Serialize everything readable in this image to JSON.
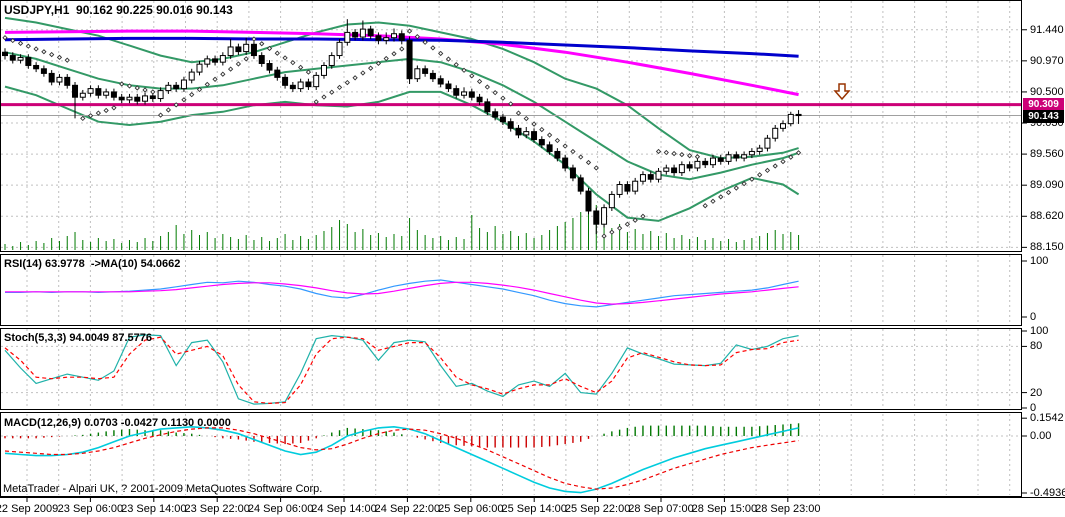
{
  "header": {
    "title": "USDJPY,H1  90.162 90.225 90.016 90.143"
  },
  "copyright": "MetaTrader - Alpari UK, ? 2001-2009 MetaQuotes Software Corp.",
  "panels": {
    "rsi_label": "RSI(14) 63.9778  ->MA(10) 54.0662",
    "stoch_label": "Stoch(5,3,3) 94.0049 87.5776",
    "macd_label": "MACD(12,26,9) 0.0703 -0.0427 0.1130 0.0000"
  },
  "price_axis": {
    "labels": [
      {
        "t": "91.440",
        "v": 91.44
      },
      {
        "t": "90.970",
        "v": 90.97
      },
      {
        "t": "90.500",
        "v": 90.5
      },
      {
        "t": "90.030",
        "v": 90.03
      },
      {
        "t": "89.560",
        "v": 89.56
      },
      {
        "t": "89.090",
        "v": 89.09
      },
      {
        "t": "88.620",
        "v": 88.62
      },
      {
        "t": "88.150",
        "v": 88.15
      }
    ],
    "level_tag": "90.309",
    "price_tag": "90.143"
  },
  "rsi_axis": [
    {
      "t": "100",
      "v": 100
    },
    {
      "t": "0",
      "v": 0
    }
  ],
  "stoch_axis": [
    {
      "t": "100",
      "v": 100
    },
    {
      "t": "80",
      "v": 80
    },
    {
      "t": "20",
      "v": 20
    },
    {
      "t": "0",
      "v": 0
    }
  ],
  "macd_axis": [
    {
      "t": "0.1542",
      "v": 0.1542
    },
    {
      "t": "0.00",
      "v": 0
    },
    {
      "t": "-0.4936",
      "v": -0.4936
    }
  ],
  "time_axis": {
    "labels": [
      "22 Sep 2009",
      "23 Sep 06:00",
      "23 Sep 14:00",
      "23 Sep 22:00",
      "24 Sep 06:00",
      "24 Sep 14:00",
      "24 Sep 22:00",
      "25 Sep 06:00",
      "25 Sep 14:00",
      "25 Sep 22:00",
      "28 Sep 07:00",
      "28 Sep 15:00",
      "28 Sep 23:00"
    ]
  },
  "colors": {
    "grid": "#c0c0c0",
    "border": "#000000",
    "bull": "#ffffff",
    "bear": "#000000",
    "candle_line": "#000000",
    "bollinger": "#339966",
    "ma_blue": "#0000cc",
    "ma_magenta": "#ff00ff",
    "level_line": "#cc0077",
    "price_line": "#a0a0a0",
    "volume": "#007a00",
    "sar": "#333333",
    "rsi": "#3399ff",
    "rsi_ma": "#ff00ff",
    "stoch_k": "#20b2aa",
    "stoch_d": "#ff0000",
    "macd_line": "#00ccdd",
    "macd_signal": "#ee0000",
    "hist_pos": "#007700",
    "hist_neg": "#cc0000",
    "arrow": "#993300",
    "tag_level_bg": "#cc0077",
    "tag_price_bg": "#000000"
  },
  "chart_data": {
    "type": "candlestick",
    "symbol": "USDJPY",
    "timeframe": "H1",
    "current_bar": {
      "open": 90.162,
      "high": 90.225,
      "low": 90.016,
      "close": 90.143
    },
    "price_ylim": [
      88.11,
      91.89
    ],
    "level_line_value": 90.309,
    "current_price": 90.143,
    "arrow": {
      "x": 842,
      "y": 84,
      "dir": "down"
    },
    "candles": [
      [
        91.1,
        91.16,
        90.99,
        91.05
      ],
      [
        91.05,
        91.1,
        90.93,
        90.98
      ],
      [
        90.98,
        91.07,
        90.93,
        91.02
      ],
      [
        91.02,
        91.07,
        90.85,
        90.9
      ],
      [
        90.9,
        90.95,
        90.8,
        90.85
      ],
      [
        90.85,
        90.9,
        90.73,
        90.78
      ],
      [
        90.78,
        90.83,
        90.6,
        90.65
      ],
      [
        90.65,
        90.77,
        90.6,
        90.72
      ],
      [
        90.72,
        90.77,
        90.55,
        90.6
      ],
      [
        90.6,
        90.65,
        90.1,
        90.42
      ],
      [
        90.42,
        90.53,
        90.37,
        90.48
      ],
      [
        90.48,
        90.6,
        90.43,
        90.55
      ],
      [
        90.55,
        90.6,
        90.4,
        90.45
      ],
      [
        90.45,
        90.55,
        90.4,
        90.5
      ],
      [
        90.5,
        90.55,
        90.37,
        90.42
      ],
      [
        90.42,
        90.47,
        90.33,
        90.38
      ],
      [
        90.38,
        90.47,
        90.33,
        90.42
      ],
      [
        90.42,
        90.47,
        90.31,
        90.36
      ],
      [
        90.36,
        90.49,
        90.31,
        90.44
      ],
      [
        90.44,
        90.49,
        90.35,
        90.4
      ],
      [
        90.4,
        90.57,
        90.35,
        90.52
      ],
      [
        90.52,
        90.65,
        90.47,
        90.6
      ],
      [
        90.6,
        90.65,
        90.5,
        90.55
      ],
      [
        90.55,
        90.73,
        90.5,
        90.68
      ],
      [
        90.68,
        90.85,
        90.63,
        90.8
      ],
      [
        90.8,
        90.97,
        90.75,
        90.92
      ],
      [
        90.92,
        91.05,
        90.87,
        91.0
      ],
      [
        91.0,
        91.05,
        90.9,
        90.95
      ],
      [
        90.95,
        91.1,
        90.9,
        91.05
      ],
      [
        91.05,
        91.3,
        91.0,
        91.18
      ],
      [
        91.18,
        91.23,
        91.06,
        91.11
      ],
      [
        91.11,
        91.32,
        91.06,
        91.22
      ],
      [
        91.22,
        91.27,
        91.0,
        91.05
      ],
      [
        91.05,
        91.1,
        90.88,
        90.93
      ],
      [
        90.93,
        90.98,
        90.78,
        90.83
      ],
      [
        90.83,
        90.88,
        90.67,
        90.72
      ],
      [
        90.72,
        90.77,
        90.55,
        90.6
      ],
      [
        90.6,
        90.65,
        90.5,
        90.55
      ],
      [
        90.55,
        90.7,
        90.5,
        90.65
      ],
      [
        90.65,
        90.7,
        90.53,
        90.58
      ],
      [
        90.58,
        90.8,
        90.53,
        90.75
      ],
      [
        90.75,
        90.95,
        90.7,
        90.9
      ],
      [
        90.9,
        91.1,
        90.85,
        91.05
      ],
      [
        91.05,
        91.3,
        91.0,
        91.25
      ],
      [
        91.25,
        91.6,
        91.2,
        91.4
      ],
      [
        91.4,
        91.45,
        91.28,
        91.33
      ],
      [
        91.33,
        91.58,
        91.28,
        91.45
      ],
      [
        91.45,
        91.5,
        91.3,
        91.35
      ],
      [
        91.35,
        91.4,
        91.22,
        91.28
      ],
      [
        91.28,
        91.4,
        91.22,
        91.32
      ],
      [
        91.32,
        91.46,
        91.26,
        91.38
      ],
      [
        91.38,
        91.43,
        91.22,
        91.28
      ],
      [
        91.28,
        91.34,
        90.62,
        90.7
      ],
      [
        90.7,
        90.9,
        90.65,
        90.85
      ],
      [
        90.85,
        90.9,
        90.73,
        90.78
      ],
      [
        90.78,
        90.83,
        90.65,
        90.7
      ],
      [
        90.7,
        90.75,
        90.57,
        90.62
      ],
      [
        90.62,
        90.67,
        90.5,
        90.55
      ],
      [
        90.55,
        90.6,
        90.4,
        90.45
      ],
      [
        90.45,
        90.57,
        90.4,
        90.5
      ],
      [
        90.5,
        90.55,
        90.37,
        90.42
      ],
      [
        90.42,
        90.47,
        90.3,
        90.35
      ],
      [
        90.35,
        90.4,
        90.15,
        90.2
      ],
      [
        90.2,
        90.25,
        90.07,
        90.12
      ],
      [
        90.12,
        90.17,
        90.0,
        90.05
      ],
      [
        90.05,
        90.1,
        89.9,
        89.95
      ],
      [
        89.95,
        90.0,
        89.8,
        89.85
      ],
      [
        89.85,
        89.97,
        89.8,
        89.9
      ],
      [
        89.9,
        89.95,
        89.73,
        89.78
      ],
      [
        89.78,
        89.83,
        89.65,
        89.7
      ],
      [
        89.7,
        89.75,
        89.55,
        89.6
      ],
      [
        89.6,
        89.65,
        89.45,
        89.5
      ],
      [
        89.5,
        89.55,
        89.3,
        89.35
      ],
      [
        89.35,
        89.4,
        89.15,
        89.2
      ],
      [
        89.2,
        89.25,
        88.95,
        89.0
      ],
      [
        89.0,
        89.05,
        88.65,
        88.7
      ],
      [
        88.7,
        88.75,
        88.35,
        88.5
      ],
      [
        88.5,
        88.8,
        88.45,
        88.75
      ],
      [
        88.75,
        89.0,
        88.7,
        88.95
      ],
      [
        88.95,
        89.15,
        88.9,
        89.1
      ],
      [
        89.1,
        89.15,
        88.95,
        89.0
      ],
      [
        89.0,
        89.2,
        88.95,
        89.15
      ],
      [
        89.15,
        89.3,
        89.1,
        89.25
      ],
      [
        89.25,
        89.3,
        89.13,
        89.18
      ],
      [
        89.18,
        89.35,
        89.13,
        89.3
      ],
      [
        89.3,
        89.4,
        89.25,
        89.35
      ],
      [
        89.35,
        89.4,
        89.23,
        89.28
      ],
      [
        89.28,
        89.45,
        89.23,
        89.4
      ],
      [
        89.4,
        89.45,
        89.3,
        89.35
      ],
      [
        89.35,
        89.5,
        89.3,
        89.45
      ],
      [
        89.45,
        89.5,
        89.35,
        89.4
      ],
      [
        89.4,
        89.55,
        89.35,
        89.5
      ],
      [
        89.5,
        89.55,
        89.4,
        89.45
      ],
      [
        89.45,
        89.6,
        89.4,
        89.55
      ],
      [
        89.55,
        89.6,
        89.45,
        89.5
      ],
      [
        89.5,
        89.6,
        89.45,
        89.55
      ],
      [
        89.55,
        89.65,
        89.5,
        89.6
      ],
      [
        89.6,
        89.7,
        89.55,
        89.65
      ],
      [
        89.65,
        89.85,
        89.6,
        89.8
      ],
      [
        89.8,
        90.0,
        89.75,
        89.95
      ],
      [
        89.95,
        90.07,
        89.9,
        90.02
      ],
      [
        90.02,
        90.2,
        89.98,
        90.16
      ],
      [
        90.16,
        90.225,
        90.016,
        90.143
      ]
    ],
    "volume": [
      6,
      4,
      8,
      5,
      9,
      7,
      12,
      9,
      14,
      18,
      10,
      8,
      12,
      9,
      11,
      7,
      10,
      8,
      12,
      9,
      14,
      18,
      25,
      16,
      20,
      15,
      18,
      12,
      16,
      13,
      11,
      15,
      10,
      13,
      9,
      12,
      16,
      10,
      14,
      11,
      15,
      19,
      23,
      30,
      26,
      18,
      21,
      15,
      17,
      13,
      16,
      14,
      32,
      20,
      15,
      12,
      14,
      10,
      13,
      11,
      35,
      22,
      18,
      24,
      16,
      19,
      14,
      17,
      12,
      15,
      20,
      24,
      28,
      32,
      38,
      42,
      45,
      30,
      22,
      26,
      18,
      21,
      16,
      19,
      14,
      17,
      12,
      15,
      11,
      13,
      10,
      12,
      9,
      11,
      8,
      10,
      12,
      14,
      17,
      20,
      16,
      18,
      15
    ],
    "bollinger": {
      "step": 4,
      "upper": [
        91.62,
        91.55,
        91.45,
        91.35,
        91.2,
        91.05,
        90.95,
        91.0,
        91.1,
        91.25,
        91.4,
        91.52,
        91.55,
        91.5,
        91.4,
        91.3,
        91.15,
        90.95,
        90.7,
        90.55,
        90.3,
        89.95,
        89.62,
        89.5,
        89.52,
        89.58,
        89.65
      ],
      "middle": [
        91.1,
        91.0,
        90.85,
        90.7,
        90.6,
        90.55,
        90.55,
        90.6,
        90.7,
        90.8,
        90.85,
        90.9,
        90.95,
        91.0,
        90.95,
        90.8,
        90.6,
        90.35,
        90.05,
        89.75,
        89.45,
        89.25,
        89.18,
        89.28,
        89.4,
        89.5,
        89.58
      ],
      "lower": [
        90.58,
        90.45,
        90.25,
        90.05,
        90.0,
        90.05,
        90.15,
        90.2,
        90.3,
        90.35,
        90.3,
        90.28,
        90.35,
        90.5,
        90.5,
        90.3,
        90.05,
        89.75,
        89.4,
        88.95,
        88.6,
        88.55,
        88.74,
        89.0,
        89.2,
        89.1,
        88.95
      ]
    },
    "ma_blue": {
      "step": 8,
      "values": [
        91.29,
        91.3,
        91.31,
        91.31,
        91.3,
        91.3,
        91.29,
        91.28,
        91.25,
        91.21,
        91.17,
        91.12,
        91.08,
        91.04
      ]
    },
    "ma_magenta": {
      "step": 8,
      "values": [
        91.4,
        91.41,
        91.42,
        91.42,
        91.4,
        91.38,
        91.35,
        91.3,
        91.22,
        91.1,
        90.95,
        90.78,
        90.6,
        90.46
      ]
    },
    "sar_segments": [
      [
        0,
        8,
        91.32,
        90.98
      ],
      [
        10,
        14,
        90.1,
        90.26
      ],
      [
        15,
        19,
        90.62,
        90.5
      ],
      [
        20,
        31,
        90.15,
        91.0
      ],
      [
        32,
        39,
        91.3,
        90.8
      ],
      [
        40,
        51,
        90.35,
        91.15
      ],
      [
        52,
        65,
        91.42,
        90.32
      ],
      [
        66,
        76,
        90.18,
        89.35
      ],
      [
        77,
        82,
        88.32,
        88.62
      ],
      [
        84,
        89,
        89.6,
        89.52
      ],
      [
        90,
        102,
        88.78,
        89.58
      ]
    ],
    "rsi": {
      "ylim": [
        0,
        100
      ],
      "step": 2,
      "main": [
        44,
        44,
        45,
        44,
        45,
        45,
        44,
        45,
        46,
        48,
        50,
        54,
        58,
        62,
        61,
        64,
        62,
        58,
        55,
        50,
        42,
        36,
        34,
        40,
        48,
        55,
        60,
        64,
        66,
        62,
        58,
        54,
        50,
        44,
        38,
        30,
        24,
        20,
        18,
        22,
        26,
        30,
        34,
        38,
        40,
        42,
        44,
        46,
        48,
        52,
        58,
        64
      ],
      "signal": [
        45,
        45,
        45,
        45,
        45,
        45,
        45,
        45,
        45,
        46,
        47,
        49,
        52,
        55,
        58,
        60,
        61,
        61,
        59,
        56,
        52,
        47,
        43,
        41,
        42,
        46,
        51,
        56,
        60,
        62,
        62,
        60,
        57,
        53,
        48,
        42,
        36,
        30,
        25,
        23,
        24,
        26,
        29,
        32,
        35,
        38,
        41,
        43,
        45,
        48,
        51,
        54
      ]
    },
    "stoch": {
      "ylim": [
        0,
        100
      ],
      "levels": [
        80,
        20
      ],
      "step": 2,
      "k": [
        75,
        52,
        32,
        38,
        44,
        40,
        36,
        48,
        92,
        95,
        94,
        55,
        85,
        88,
        60,
        12,
        5,
        6,
        8,
        45,
        90,
        94,
        92,
        88,
        62,
        85,
        88,
        86,
        55,
        28,
        32,
        22,
        15,
        30,
        35,
        28,
        45,
        20,
        18,
        45,
        78,
        70,
        64,
        57,
        56,
        55,
        58,
        82,
        76,
        80,
        90,
        94
      ],
      "d": [
        78,
        62,
        40,
        38,
        40,
        40,
        38,
        40,
        70,
        88,
        92,
        70,
        75,
        80,
        68,
        30,
        8,
        6,
        7,
        30,
        70,
        90,
        92,
        90,
        75,
        80,
        85,
        85,
        65,
        40,
        30,
        25,
        18,
        25,
        30,
        30,
        38,
        28,
        20,
        35,
        65,
        72,
        66,
        60,
        56,
        55,
        56,
        72,
        76,
        77,
        85,
        88
      ]
    },
    "macd": {
      "ylim": [
        -0.4936,
        0.1542
      ],
      "zero_level": 0.0,
      "step": 2,
      "histogram_rule": "macd_minus_signal",
      "macd": [
        -0.15,
        -0.16,
        -0.17,
        -0.17,
        -0.16,
        -0.14,
        -0.1,
        -0.05,
        0.0,
        0.03,
        0.06,
        0.07,
        0.08,
        0.07,
        0.05,
        0.02,
        -0.03,
        -0.08,
        -0.13,
        -0.16,
        -0.14,
        -0.08,
        0.0,
        0.04,
        0.07,
        0.08,
        0.06,
        0.02,
        -0.04,
        -0.1,
        -0.16,
        -0.22,
        -0.28,
        -0.34,
        -0.4,
        -0.45,
        -0.48,
        -0.49,
        -0.46,
        -0.41,
        -0.35,
        -0.29,
        -0.24,
        -0.19,
        -0.15,
        -0.11,
        -0.08,
        -0.05,
        -0.02,
        0.01,
        0.04,
        0.07
      ],
      "signal": [
        -0.13,
        -0.14,
        -0.15,
        -0.16,
        -0.16,
        -0.15,
        -0.13,
        -0.1,
        -0.06,
        -0.02,
        0.01,
        0.04,
        0.06,
        0.07,
        0.07,
        0.05,
        0.02,
        -0.02,
        -0.06,
        -0.1,
        -0.12,
        -0.11,
        -0.07,
        -0.02,
        0.02,
        0.05,
        0.06,
        0.05,
        0.02,
        -0.02,
        -0.07,
        -0.12,
        -0.18,
        -0.24,
        -0.3,
        -0.36,
        -0.41,
        -0.44,
        -0.46,
        -0.45,
        -0.42,
        -0.38,
        -0.33,
        -0.28,
        -0.24,
        -0.2,
        -0.16,
        -0.13,
        -0.1,
        -0.08,
        -0.06,
        -0.04
      ]
    }
  }
}
